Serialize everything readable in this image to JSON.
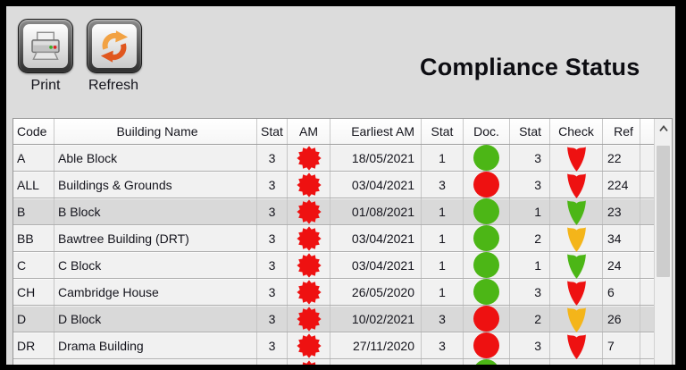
{
  "title": "Compliance Status",
  "toolbar": {
    "buttons": [
      {
        "label": "Print",
        "icon": "printer-icon"
      },
      {
        "label": "Refresh",
        "icon": "refresh-icon"
      }
    ]
  },
  "colors": {
    "status_red": "#ee1111",
    "status_green": "#4cb616",
    "status_amber": "#f4b51a"
  },
  "table": {
    "columns": [
      {
        "label": "Code"
      },
      {
        "label": "Building Name"
      },
      {
        "label": "Stat"
      },
      {
        "label": "AM"
      },
      {
        "label": "Earliest AM"
      },
      {
        "label": "Stat"
      },
      {
        "label": "Doc."
      },
      {
        "label": "Stat"
      },
      {
        "label": "Check"
      },
      {
        "label": "Ref"
      }
    ],
    "rows": [
      {
        "code": "A",
        "name": "Able Block",
        "stat1": "3",
        "am": "red",
        "earliest": "18/05/2021",
        "stat2": "1",
        "doc": "green",
        "stat3": "3",
        "check": "red",
        "ref": "22",
        "shaded": false
      },
      {
        "code": "ALL",
        "name": "Buildings & Grounds",
        "stat1": "3",
        "am": "red",
        "earliest": "03/04/2021",
        "stat2": "3",
        "doc": "red",
        "stat3": "3",
        "check": "red",
        "ref": "224",
        "shaded": false
      },
      {
        "code": "B",
        "name": "B Block",
        "stat1": "3",
        "am": "red",
        "earliest": "01/08/2021",
        "stat2": "1",
        "doc": "green",
        "stat3": "1",
        "check": "green",
        "ref": "23",
        "shaded": true
      },
      {
        "code": "BB",
        "name": "Bawtree Building (DRT)",
        "stat1": "3",
        "am": "red",
        "earliest": "03/04/2021",
        "stat2": "1",
        "doc": "green",
        "stat3": "2",
        "check": "amber",
        "ref": "34",
        "shaded": false
      },
      {
        "code": "C",
        "name": "C Block",
        "stat1": "3",
        "am": "red",
        "earliest": "03/04/2021",
        "stat2": "1",
        "doc": "green",
        "stat3": "1",
        "check": "green",
        "ref": "24",
        "shaded": false
      },
      {
        "code": "CH",
        "name": "Cambridge House",
        "stat1": "3",
        "am": "red",
        "earliest": "26/05/2020",
        "stat2": "1",
        "doc": "green",
        "stat3": "3",
        "check": "red",
        "ref": "6",
        "shaded": false
      },
      {
        "code": "D",
        "name": "D Block",
        "stat1": "3",
        "am": "red",
        "earliest": "10/02/2021",
        "stat2": "3",
        "doc": "red",
        "stat3": "2",
        "check": "amber",
        "ref": "26",
        "shaded": true
      },
      {
        "code": "DR",
        "name": "Drama Building",
        "stat1": "3",
        "am": "red",
        "earliest": "27/11/2020",
        "stat2": "3",
        "doc": "red",
        "stat3": "3",
        "check": "red",
        "ref": "7",
        "shaded": false
      },
      {
        "code": "",
        "name": "",
        "stat1": "",
        "am": "red",
        "earliest": "",
        "stat2": "",
        "doc": "green",
        "stat3": "",
        "check": "",
        "ref": "",
        "shaded": false
      }
    ]
  }
}
